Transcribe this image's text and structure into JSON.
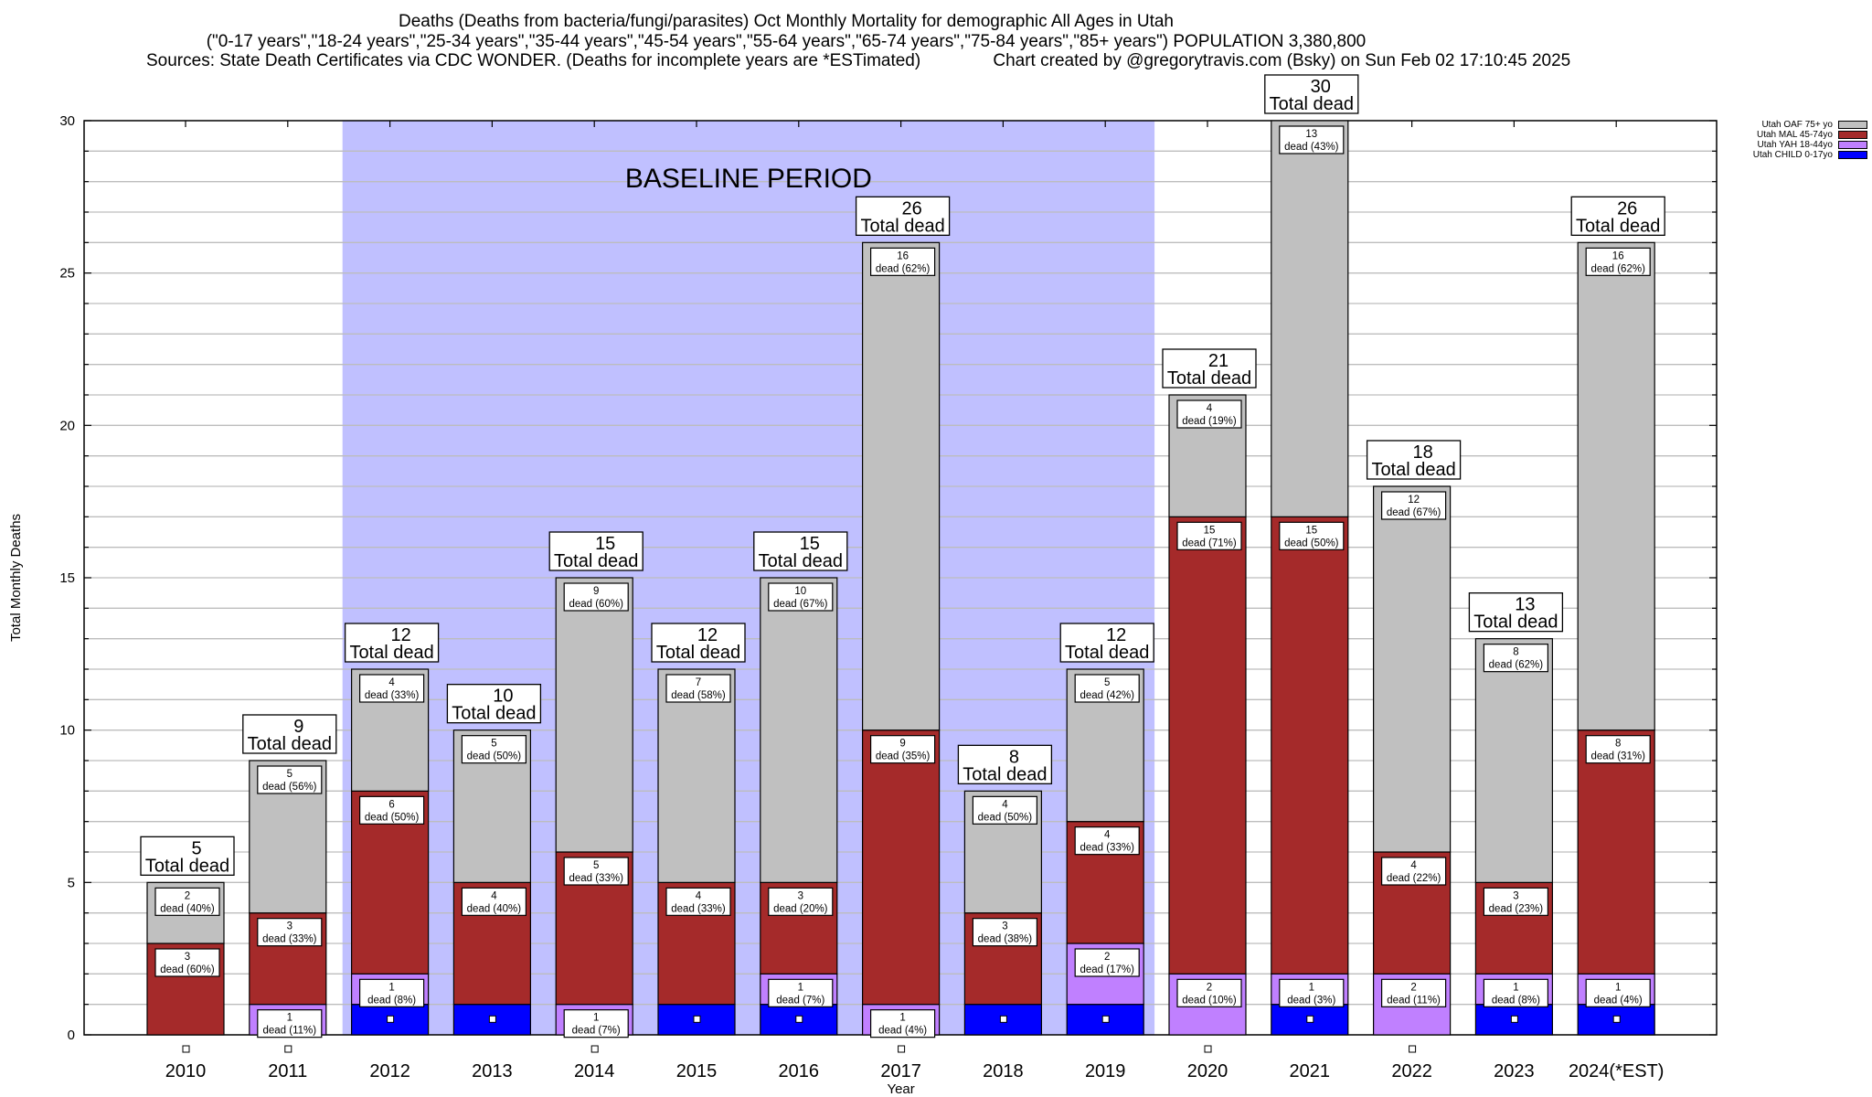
{
  "titles": {
    "line1": "Deaths (Deaths from bacteria/fungi/parasites) Oct Monthly Mortality for demographic All Ages in Utah",
    "line2": "(\"0-17 years\",\"18-24 years\",\"25-34 years\",\"35-44 years\",\"45-54 years\",\"55-64 years\",\"65-74 years\",\"75-84 years\",\"85+ years\") POPULATION 3,380,800",
    "line3": "Sources: State Death Certificates via CDC WONDER. (Deaths for incomplete years are *ESTimated)               Chart created by @gregorytravis.com (Bsky) on Sun Feb 02 17:10:45 2025"
  },
  "chart_data": {
    "type": "bar",
    "stacked": true,
    "title": "Deaths (Deaths from bacteria/fungi/parasites) Oct Monthly Mortality for demographic All Ages in Utah",
    "xlabel": "Year",
    "ylabel": "Total Monthly Deaths",
    "ylim": [
      0,
      30
    ],
    "yticks": [
      0,
      5,
      10,
      15,
      20,
      25,
      30
    ],
    "grid": true,
    "legend_position": "top-right",
    "total_label_suffix": "Total dead",
    "segment_label_word": "dead",
    "annotation": {
      "text": "BASELINE PERIOD",
      "from": "2012",
      "to": "2019",
      "color": "#c0c0ff"
    },
    "categories": [
      "2010",
      "2011",
      "2012",
      "2013",
      "2014",
      "2015",
      "2016",
      "2017",
      "2018",
      "2019",
      "2020",
      "2021",
      "2022",
      "2023",
      "2024(*EST)"
    ],
    "series": [
      {
        "name": "Utah CHILD 0-17yo",
        "color": "#0000ff",
        "values": [
          0,
          0,
          1,
          1,
          0,
          1,
          1,
          0,
          1,
          1,
          0,
          1,
          0,
          1,
          1
        ]
      },
      {
        "name": "Utah YAH 18-44yo",
        "color": "#c080ff",
        "values": [
          0,
          1,
          1,
          0,
          1,
          0,
          1,
          1,
          0,
          2,
          2,
          1,
          2,
          1,
          1
        ]
      },
      {
        "name": "Utah MAL 45-74yo",
        "color": "#a52a2a",
        "values": [
          3,
          3,
          6,
          4,
          5,
          4,
          3,
          9,
          3,
          4,
          15,
          15,
          4,
          3,
          8
        ]
      },
      {
        "name": "Utah OAF 75+ yo",
        "color": "#c0c0c0",
        "values": [
          2,
          5,
          4,
          5,
          9,
          7,
          10,
          16,
          4,
          5,
          4,
          13,
          12,
          8,
          16
        ]
      }
    ],
    "totals": [
      5,
      9,
      12,
      10,
      15,
      12,
      15,
      26,
      8,
      12,
      21,
      30,
      18,
      13,
      26
    ],
    "segment_percent_labels": {
      "Utah YAH 18-44yo": [
        "",
        "11%",
        "8%",
        "",
        "7%",
        "",
        "7%",
        "4%",
        "",
        "17%",
        "10%",
        "3%",
        "11%",
        "8%",
        "4%"
      ],
      "Utah MAL 45-74yo": [
        "60%",
        "33%",
        "50%",
        "40%",
        "33%",
        "33%",
        "20%",
        "35%",
        "38%",
        "33%",
        "71%",
        "50%",
        "22%",
        "23%",
        "31%"
      ],
      "Utah OAF 75+ yo": [
        "40%",
        "56%",
        "33%",
        "50%",
        "60%",
        "58%",
        "67%",
        "62%",
        "50%",
        "42%",
        "19%",
        "43%",
        "67%",
        "62%",
        "62%"
      ]
    }
  }
}
